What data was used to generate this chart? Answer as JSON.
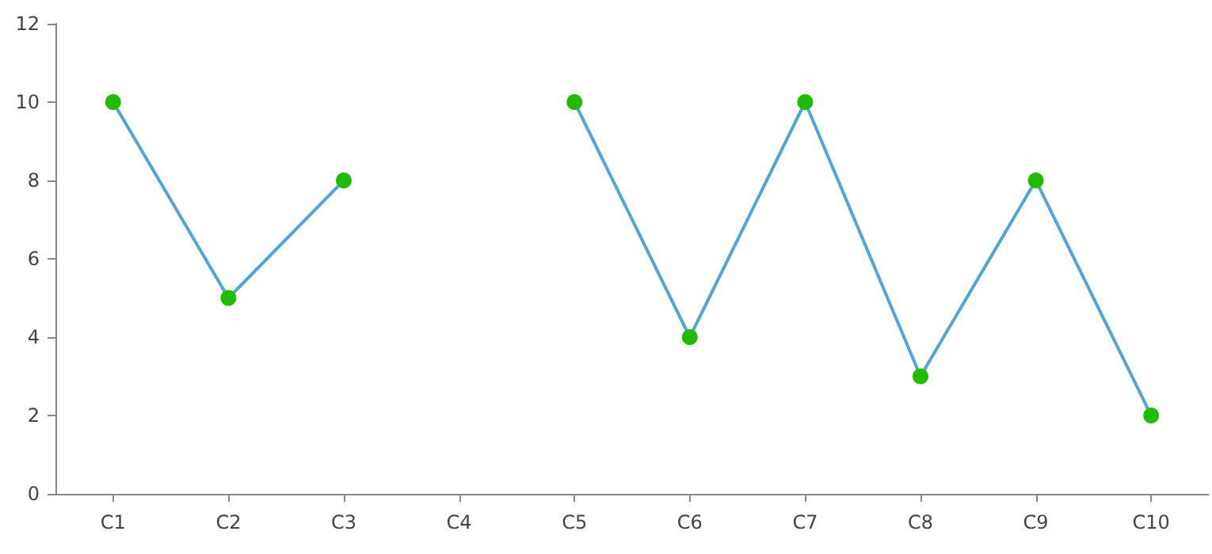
{
  "chart_data": {
    "type": "line",
    "categories": [
      "C1",
      "C2",
      "C3",
      "C4",
      "C5",
      "C6",
      "C7",
      "C8",
      "C9",
      "C10"
    ],
    "series": [
      {
        "color": "#55a4d8",
        "colors": [
          "#22bb00",
          "#22bb00",
          "#22bb00",
          "#22bb00",
          "#22bb00",
          "#22bb00",
          "#22bb00",
          "#22bb00",
          "#22bb00",
          "#22bb00"
        ],
        "values": [
          10,
          5,
          8,
          null,
          10,
          4,
          10,
          3,
          8,
          2
        ]
      }
    ],
    "ylim": [
      0,
      12
    ],
    "yticks": [
      0,
      2,
      4,
      6,
      8,
      10,
      12
    ],
    "grid": false,
    "marker": "circle",
    "line_style": "solid"
  }
}
